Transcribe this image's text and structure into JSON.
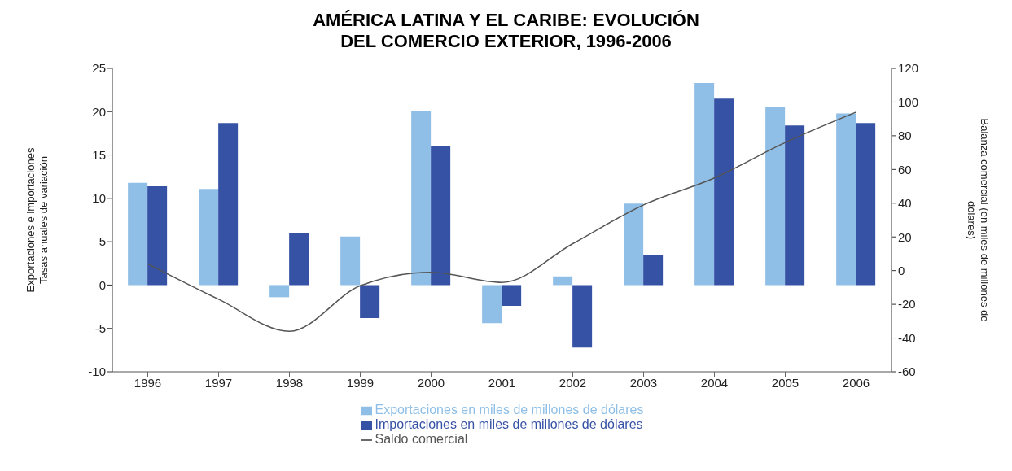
{
  "chart_data": {
    "type": "bar",
    "title": "AMÉRICA LATINA Y EL CARIBE: EVOLUCIÓN\nDEL COMERCIO EXTERIOR, 1996-2006",
    "categories": [
      "1996",
      "1997",
      "1998",
      "1999",
      "2000",
      "2001",
      "2002",
      "2003",
      "2004",
      "2005",
      "2006"
    ],
    "series": [
      {
        "name": "Exportaciones en miles de millones de dólares",
        "color": "#8fbfe6",
        "values": [
          11.8,
          11.1,
          -1.4,
          5.6,
          20.1,
          -4.4,
          1.0,
          9.4,
          23.3,
          20.6,
          19.8
        ]
      },
      {
        "name": "Importaciones en miles de millones de dólares",
        "color": "#3652a5",
        "values": [
          11.4,
          18.7,
          6.0,
          -3.8,
          16.0,
          -2.4,
          -7.2,
          3.5,
          21.5,
          18.4,
          18.7
        ]
      },
      {
        "name": "Saldo comercial",
        "type": "line",
        "axis": "y2",
        "color": "#555555",
        "values": [
          4,
          -17,
          -36,
          -9,
          -1,
          -7,
          16,
          39,
          55,
          76,
          94
        ]
      }
    ],
    "ylabel": "Exportaciones e importaciones\nTasas anuales de variación",
    "y2label": "Balanza comercial (en miles de millones de\ndólares)",
    "ylim": [
      -10,
      25
    ],
    "yticks": [
      -10,
      -5,
      0,
      5,
      10,
      15,
      20,
      25
    ],
    "y2lim": [
      -60,
      120
    ],
    "y2ticks": [
      -60,
      -40,
      -20,
      0,
      20,
      40,
      60,
      80,
      100,
      120
    ],
    "grid": false,
    "legend": "bottom",
    "marker": "none"
  }
}
